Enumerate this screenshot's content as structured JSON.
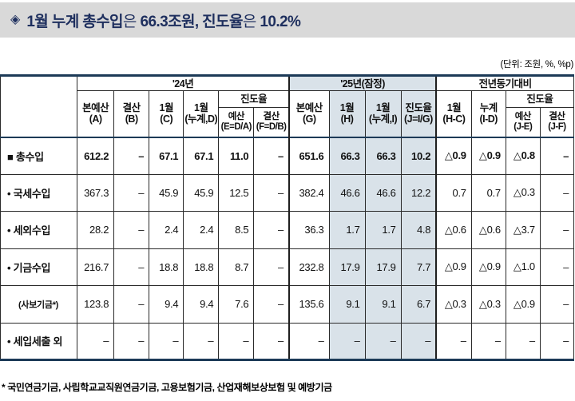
{
  "title": {
    "icon": "◈",
    "segments": [
      {
        "text": "1월 누계 총수입",
        "bold": true
      },
      {
        "text": "은 ",
        "bold": false
      },
      {
        "text": "66.3조원, 진도율",
        "bold": true
      },
      {
        "text": "은 ",
        "bold": false
      },
      {
        "text": "10.2%",
        "bold": true
      }
    ]
  },
  "unit_note": "(단위: 조원, %, %p)",
  "table": {
    "header": {
      "g24": "'24년",
      "g25": "'25년(잠정)",
      "gyoy": "전년동기대비",
      "jindo": "진도율",
      "a": "본예산\n(A)",
      "b": "결산\n(B)",
      "c": "1월\n(C)",
      "d": "1월\n(누계,D)",
      "e": "예산\n(E=D/A)",
      "f": "결산\n(F=D/B)",
      "g": "본예산\n(G)",
      "h": "1월\n(H)",
      "i": "1월\n(누계,I)",
      "j": "진도율\n(J=I/G)",
      "hc": "1월\n(H-C)",
      "id": "누계\n(I-D)",
      "je": "예산\n(J-E)",
      "jf": "결산\n(J-F)"
    },
    "shaded_value_cols": [
      7,
      8,
      9
    ],
    "section_start_cols": [
      6,
      10
    ],
    "rows": [
      {
        "bullet": "■",
        "label": "총수입",
        "bold": true,
        "small": false,
        "values": [
          "612.2",
          "–",
          "67.1",
          "67.1",
          "11.0",
          "–",
          "651.6",
          "66.3",
          "66.3",
          "10.2",
          "△0.9",
          "△0.9",
          "△0.8",
          "–"
        ]
      },
      {
        "bullet": "•",
        "label": "국세수입",
        "bold": false,
        "small": false,
        "values": [
          "367.3",
          "–",
          "45.9",
          "45.9",
          "12.5",
          "–",
          "382.4",
          "46.6",
          "46.6",
          "12.2",
          "0.7",
          "0.7",
          "△0.3",
          "–"
        ]
      },
      {
        "bullet": "•",
        "label": "세외수입",
        "bold": false,
        "small": false,
        "values": [
          "28.2",
          "–",
          "2.4",
          "2.4",
          "8.5",
          "–",
          "36.3",
          "1.7",
          "1.7",
          "4.8",
          "△0.6",
          "△0.6",
          "△3.7",
          "–"
        ]
      },
      {
        "bullet": "•",
        "label": "기금수입",
        "bold": false,
        "small": false,
        "values": [
          "216.7",
          "–",
          "18.8",
          "18.8",
          "8.7",
          "–",
          "232.8",
          "17.9",
          "17.9",
          "7.7",
          "△0.9",
          "△0.9",
          "△1.0",
          "–"
        ]
      },
      {
        "bullet": "",
        "label": "(사보기금*)",
        "bold": false,
        "small": true,
        "values": [
          "123.8",
          "–",
          "9.4",
          "9.4",
          "7.6",
          "–",
          "135.6",
          "9.1",
          "9.1",
          "6.7",
          "△0.3",
          "△0.3",
          "△0.9",
          "–"
        ]
      },
      {
        "bullet": "•",
        "label": "세입세출 외",
        "bold": false,
        "small": false,
        "values": [
          "–",
          "–",
          "–",
          "–",
          "–",
          "–",
          "–",
          "–",
          "–",
          "–",
          "–",
          "–",
          "–",
          "–"
        ]
      }
    ]
  },
  "footnote": "* 국민연금기금, 사립학교교직원연금기금, 고용보험기금, 산업재해보상보험 및 예방기금"
}
